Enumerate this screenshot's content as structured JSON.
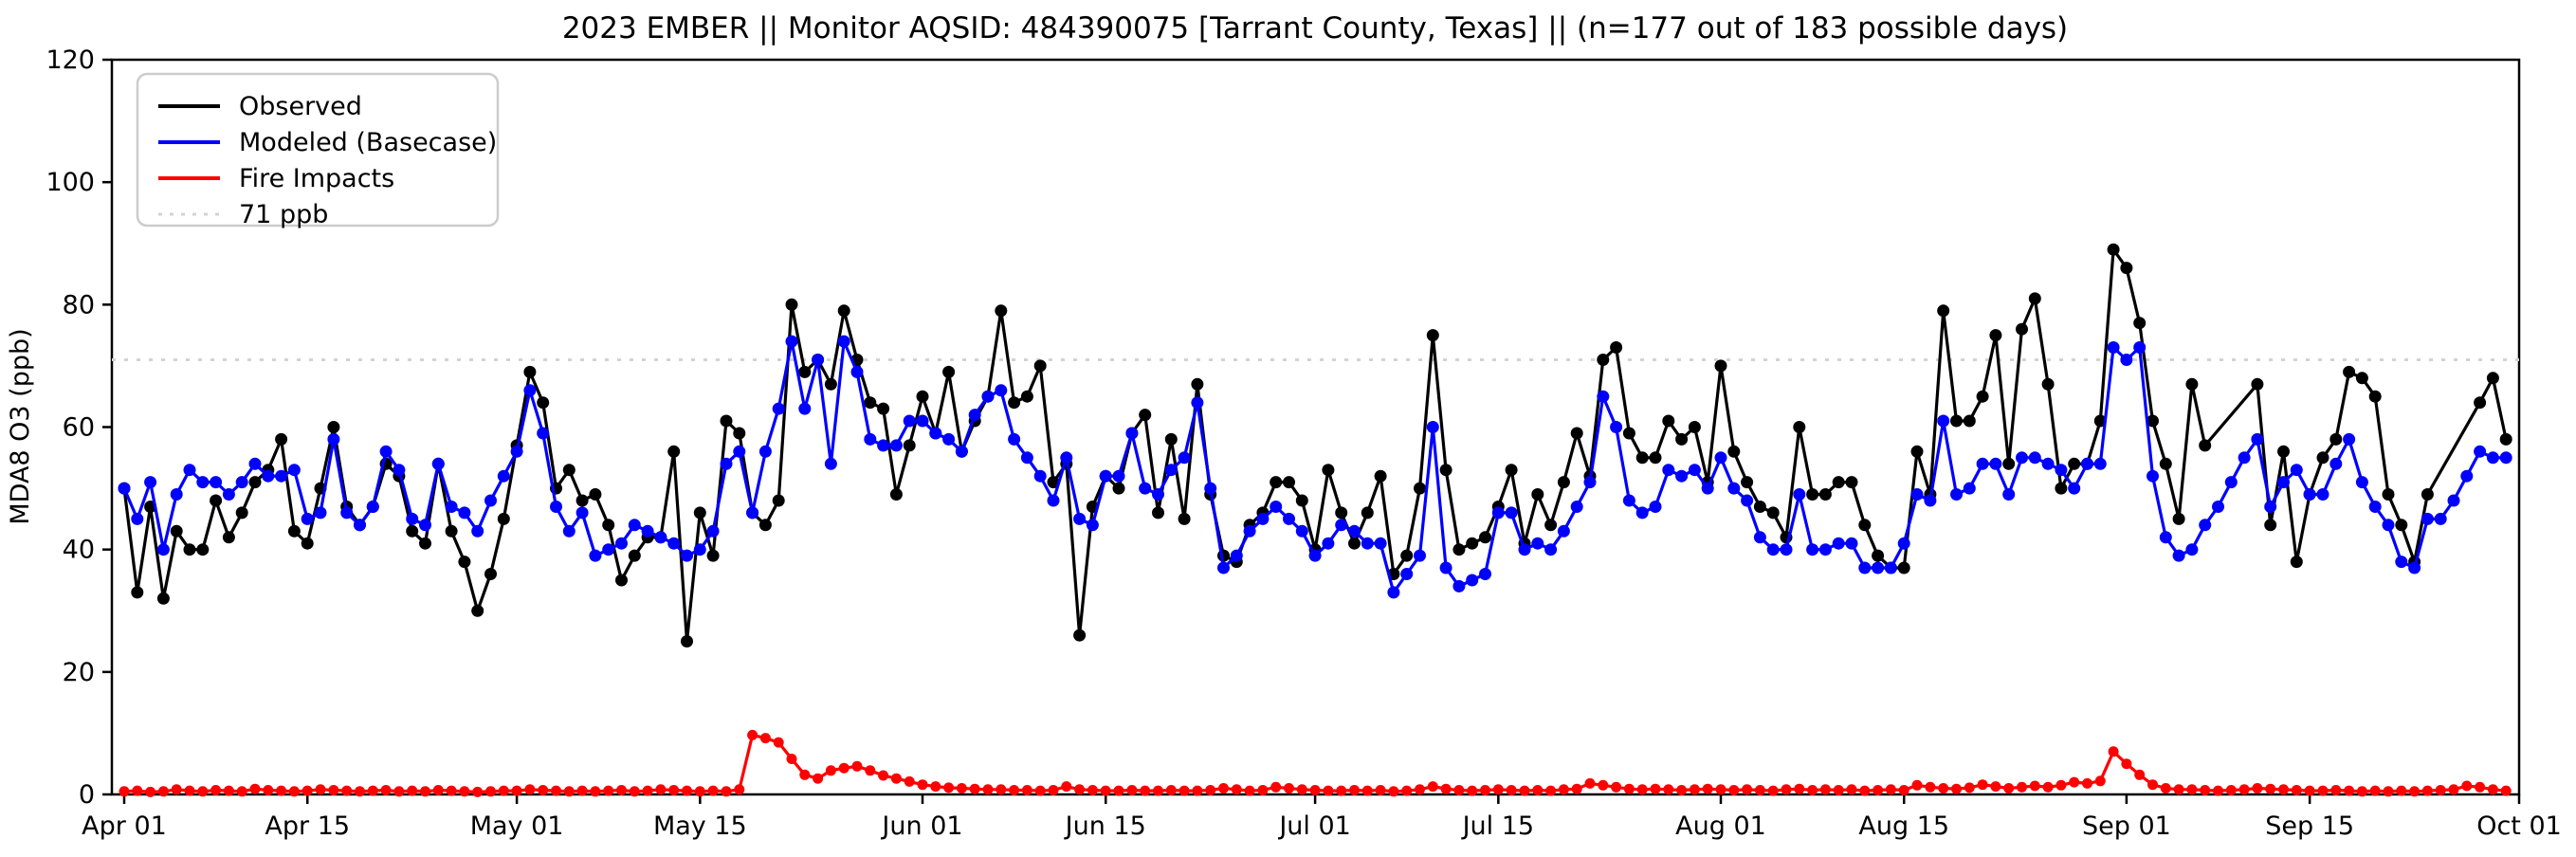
{
  "title": "2023 EMBER || Monitor AQSID: 484390075 [Tarrant County, Texas] || (n=177 out of 183 possible days)",
  "n_days_observed": "177",
  "n_days_possible": "183",
  "legend": {
    "items": [
      {
        "label": "Observed",
        "color": "#000000",
        "style": "solid"
      },
      {
        "label": "Modeled (Basecase)",
        "color": "#0000ff",
        "style": "solid"
      },
      {
        "label": "Fire Impacts",
        "color": "#ff0000",
        "style": "solid"
      },
      {
        "label": "71 ppb",
        "color": "#d3d3d3",
        "style": "dotted"
      }
    ]
  },
  "chart_data": {
    "type": "line",
    "title": "2023 EMBER || Monitor AQSID: 484390075 [Tarrant County, Texas] || (n=177 out of 183 possible days)",
    "xlabel": "",
    "ylabel": "MDA8 O3 (ppb)",
    "ylim": [
      0,
      120
    ],
    "y_ticks": [
      0,
      20,
      40,
      60,
      80,
      100,
      120
    ],
    "grid": false,
    "legend_position": "upper left",
    "start_date": "2023-04-01",
    "n_days": 183,
    "x_tick_days": [
      0,
      14,
      30,
      44,
      61,
      75,
      91,
      105,
      122,
      136,
      153,
      167,
      183
    ],
    "x_tick_labels": [
      "Apr 01",
      "Apr 15",
      "May 01",
      "May 15",
      "Jun 01",
      "Jun 15",
      "Jul 01",
      "Jul 15",
      "Aug 01",
      "Aug 15",
      "Sep 01",
      "Sep 15",
      "Oct 01"
    ],
    "reference_line": {
      "label": "71 ppb",
      "value": 71,
      "color": "#d3d3d3",
      "style": "dotted"
    },
    "series": [
      {
        "name": "Observed",
        "color": "#000000",
        "marker": true,
        "values": [
          50,
          33,
          47,
          32,
          43,
          40,
          40,
          48,
          42,
          46,
          51,
          53,
          58,
          43,
          41,
          50,
          60,
          47,
          44,
          47,
          54,
          52,
          43,
          41,
          54,
          43,
          38,
          30,
          36,
          45,
          57,
          69,
          64,
          50,
          53,
          48,
          49,
          44,
          35,
          39,
          42,
          42,
          56,
          25,
          46,
          39,
          61,
          59,
          46,
          44,
          48,
          80,
          69,
          71,
          67,
          79,
          71,
          64,
          63,
          49,
          57,
          65,
          59,
          69,
          56,
          61,
          65,
          79,
          64,
          65,
          70,
          51,
          54,
          26,
          47,
          52,
          50,
          59,
          62,
          46,
          58,
          45,
          67,
          49,
          39,
          38,
          44,
          46,
          51,
          51,
          48,
          40,
          53,
          46,
          41,
          46,
          52,
          36,
          39,
          50,
          75,
          53,
          40,
          41,
          42,
          47,
          53,
          41,
          49,
          44,
          51,
          59,
          52,
          71,
          73,
          59,
          55,
          55,
          61,
          58,
          60,
          51,
          70,
          56,
          51,
          47,
          46,
          42,
          60,
          49,
          49,
          51,
          51,
          44,
          39,
          37,
          37,
          56,
          49,
          79,
          61,
          61,
          65,
          75,
          54,
          76,
          81,
          67,
          50,
          54,
          54,
          61,
          89,
          86,
          77,
          61,
          54,
          45,
          67,
          57,
          null,
          null,
          null,
          67,
          44,
          56,
          38,
          49,
          55,
          58,
          69,
          68,
          65,
          49,
          44,
          38,
          49,
          null,
          null,
          null,
          64,
          68,
          58
        ]
      },
      {
        "name": "Modeled (Basecase)",
        "color": "#0000ff",
        "marker": true,
        "values": [
          50,
          45,
          51,
          40,
          49,
          53,
          51,
          51,
          49,
          51,
          54,
          52,
          52,
          53,
          45,
          46,
          58,
          46,
          44,
          47,
          56,
          53,
          45,
          44,
          54,
          47,
          46,
          43,
          48,
          52,
          56,
          66,
          59,
          47,
          43,
          46,
          39,
          40,
          41,
          44,
          43,
          42,
          41,
          39,
          40,
          43,
          54,
          56,
          46,
          56,
          63,
          74,
          63,
          71,
          54,
          74,
          69,
          58,
          57,
          57,
          61,
          61,
          59,
          58,
          56,
          62,
          65,
          66,
          58,
          55,
          52,
          48,
          55,
          45,
          44,
          52,
          52,
          59,
          50,
          49,
          53,
          55,
          64,
          50,
          37,
          39,
          43,
          45,
          47,
          45,
          43,
          39,
          41,
          44,
          43,
          41,
          41,
          33,
          36,
          39,
          60,
          37,
          34,
          35,
          36,
          46,
          46,
          40,
          41,
          40,
          43,
          47,
          51,
          65,
          60,
          48,
          46,
          47,
          53,
          52,
          53,
          50,
          55,
          50,
          48,
          42,
          40,
          40,
          49,
          40,
          40,
          41,
          41,
          37,
          37,
          37,
          41,
          49,
          48,
          61,
          49,
          50,
          54,
          54,
          49,
          55,
          55,
          54,
          53,
          50,
          54,
          54,
          73,
          71,
          73,
          52,
          42,
          39,
          40,
          44,
          47,
          51,
          55,
          58,
          47,
          51,
          53,
          49,
          49,
          54,
          58,
          51,
          47,
          44,
          38,
          37,
          45,
          45,
          48,
          52,
          56,
          55,
          55
        ]
      },
      {
        "name": "Fire Impacts",
        "color": "#ff0000",
        "marker": true,
        "values": [
          0.5,
          0.6,
          0.4,
          0.5,
          0.8,
          0.6,
          0.5,
          0.7,
          0.6,
          0.5,
          0.9,
          0.7,
          0.6,
          0.5,
          0.6,
          0.8,
          0.7,
          0.6,
          0.5,
          0.6,
          0.7,
          0.5,
          0.6,
          0.5,
          0.7,
          0.6,
          0.5,
          0.4,
          0.5,
          0.6,
          0.6,
          0.8,
          0.7,
          0.6,
          0.5,
          0.6,
          0.5,
          0.6,
          0.7,
          0.5,
          0.6,
          0.8,
          0.7,
          0.6,
          0.5,
          0.6,
          0.5,
          0.8,
          9.7,
          9.2,
          8.5,
          5.8,
          3.2,
          2.6,
          3.9,
          4.3,
          4.6,
          3.9,
          3.1,
          2.6,
          2.1,
          1.6,
          1.3,
          1.1,
          1.0,
          0.9,
          0.8,
          0.8,
          0.7,
          0.7,
          0.6,
          0.7,
          1.3,
          0.8,
          0.7,
          0.6,
          0.6,
          0.7,
          0.6,
          0.6,
          0.7,
          0.6,
          0.6,
          0.7,
          1.0,
          0.8,
          0.6,
          0.7,
          1.2,
          1.0,
          0.8,
          0.7,
          0.6,
          0.6,
          0.7,
          0.6,
          0.7,
          0.5,
          0.6,
          0.8,
          1.3,
          0.9,
          0.7,
          0.6,
          0.7,
          0.8,
          0.7,
          0.6,
          0.7,
          0.6,
          0.8,
          0.9,
          1.8,
          1.5,
          1.2,
          0.9,
          0.8,
          0.9,
          0.8,
          0.7,
          0.8,
          0.9,
          0.8,
          0.7,
          0.8,
          0.7,
          0.6,
          0.8,
          0.9,
          0.7,
          0.8,
          0.7,
          0.8,
          0.6,
          0.7,
          0.8,
          0.7,
          1.5,
          1.2,
          1.0,
          0.9,
          1.1,
          1.6,
          1.3,
          1.0,
          1.2,
          1.4,
          1.2,
          1.5,
          2.0,
          1.8,
          2.2,
          7.0,
          5.0,
          3.2,
          1.6,
          1.0,
          0.8,
          0.8,
          0.7,
          0.6,
          0.7,
          0.8,
          1.0,
          0.9,
          0.8,
          0.7,
          0.6,
          0.6,
          0.7,
          0.6,
          0.5,
          0.6,
          0.5,
          0.6,
          0.5,
          0.6,
          0.7,
          0.8,
          1.4,
          1.2,
          0.8,
          0.6
        ]
      }
    ]
  }
}
